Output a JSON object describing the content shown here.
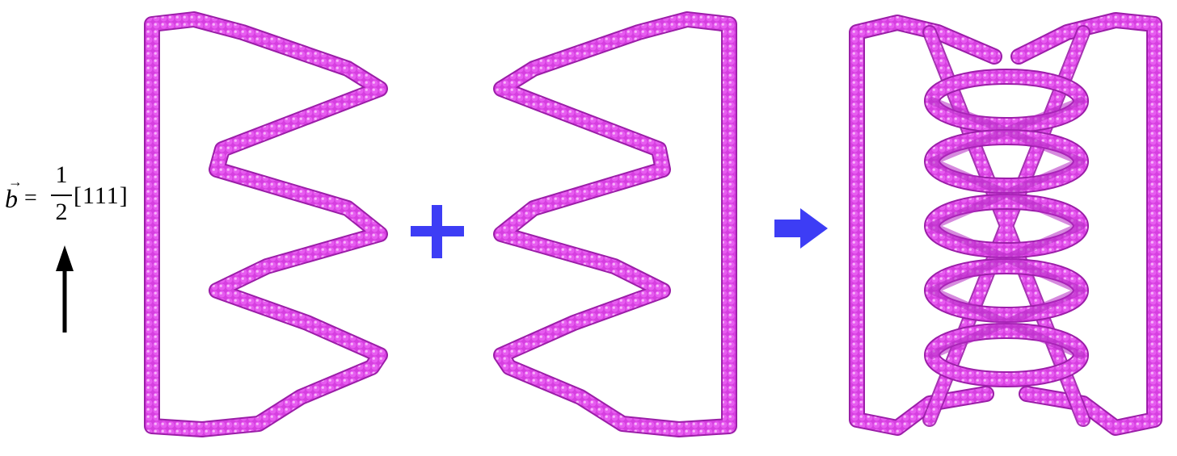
{
  "burgers_vector": {
    "symbol": "b",
    "vector_mark": "→",
    "equals": "=",
    "numerator": "1",
    "denominator": "2",
    "direction": "[111]"
  },
  "operators": {
    "plus": "+",
    "result_arrow": "➡"
  },
  "colors": {
    "loop": "#e040e8",
    "loop_dark": "#a41fb0",
    "loop_light": "#f6a6f8",
    "operator": "#3d3df5",
    "arrow": "#000000"
  },
  "panels": [
    {
      "name": "left-zigzag-loop"
    },
    {
      "name": "right-zigzag-loop"
    },
    {
      "name": "combined-helix-loop"
    }
  ]
}
